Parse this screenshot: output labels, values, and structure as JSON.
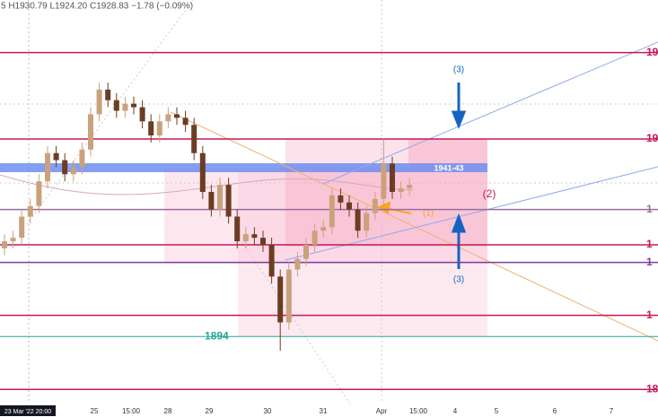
{
  "chart_data": {
    "type": "candlestick",
    "header": "5  H1930.79  L1924.20  C1928.83  −1.78 (−0.09%)",
    "open": [
      1919,
      1921,
      1922,
      1928,
      1931,
      1938,
      1946,
      1944,
      1940,
      1942,
      1947,
      1957,
      1964,
      1961,
      1958,
      1960,
      1959,
      1955,
      1951,
      1955,
      1957,
      1956,
      1954,
      1946,
      1935,
      1930,
      1937,
      1928,
      1921,
      1923,
      1922,
      1920,
      1911,
      1898,
      1913,
      1916,
      1920,
      1924,
      1925,
      1934,
      1932,
      1930,
      1924,
      1929,
      1933,
      1943,
      1935,
      1936
    ],
    "high": [
      1923,
      1924,
      1930,
      1933,
      1940,
      1948,
      1948,
      1946,
      1944,
      1949,
      1959,
      1966,
      1966,
      1963,
      1962,
      1962,
      1961,
      1957,
      1957,
      1959,
      1959,
      1958,
      1956,
      1948,
      1937,
      1939,
      1939,
      1930,
      1925,
      1925,
      1924,
      1922,
      1913,
      1915,
      1918,
      1922,
      1926,
      1927,
      1936,
      1936,
      1934,
      1932,
      1931,
      1935,
      1950,
      1945,
      1938,
      1939
    ],
    "low": [
      1917,
      1919,
      1920,
      1926,
      1929,
      1936,
      1942,
      1938,
      1938,
      1940,
      1945,
      1955,
      1959,
      1956,
      1956,
      1957,
      1953,
      1949,
      1949,
      1953,
      1954,
      1952,
      1944,
      1933,
      1928,
      1928,
      1926,
      1919,
      1919,
      1920,
      1918,
      1909,
      1890,
      1896,
      1911,
      1914,
      1918,
      1922,
      1923,
      1930,
      1928,
      1922,
      1922,
      1927,
      1931,
      1933,
      1933,
      1934
    ],
    "close": [
      1921,
      1922,
      1928,
      1931,
      1938,
      1946,
      1944,
      1940,
      1942,
      1947,
      1957,
      1964,
      1961,
      1958,
      1960,
      1959,
      1955,
      1951,
      1955,
      1957,
      1956,
      1954,
      1946,
      1935,
      1930,
      1937,
      1928,
      1921,
      1923,
      1922,
      1920,
      1911,
      1898,
      1913,
      1916,
      1920,
      1924,
      1925,
      1934,
      1932,
      1930,
      1924,
      1929,
      1933,
      1943,
      1935,
      1936,
      1937
    ],
    "up_color": "#c9a27c",
    "down_color": "#6b3d22",
    "ylim": [
      1875,
      1989.4
    ],
    "levels": [
      {
        "value": 1974.5,
        "label": "19",
        "color": "#c2185b"
      },
      {
        "value": 1950,
        "label": "19",
        "color": "#c2185b"
      },
      {
        "value": 1930,
        "label": "1",
        "color": "#9c6b9c"
      },
      {
        "value": 1920,
        "label": "1",
        "color": "#c2185b"
      },
      {
        "value": 1915,
        "label": "1",
        "color": "#7b3f9c"
      },
      {
        "value": 1900,
        "label": "1",
        "color": "#c2185b"
      },
      {
        "value": 1879,
        "label": "18",
        "color": "#c2185b"
      }
    ],
    "support": {
      "value": 1894,
      "label": "1894",
      "color": "#26a69a"
    },
    "zone_label": "1941-43",
    "annotations": {
      "one": "(1)",
      "two": "(2)",
      "three_top": "(3)",
      "three_bottom": "(3)"
    },
    "x_labels": [
      "23 Mar '22  20:00",
      "25",
      "15:00",
      "28",
      "29",
      "30",
      "31",
      "Apr",
      "15:00",
      "4",
      "5",
      "6",
      "7"
    ]
  }
}
